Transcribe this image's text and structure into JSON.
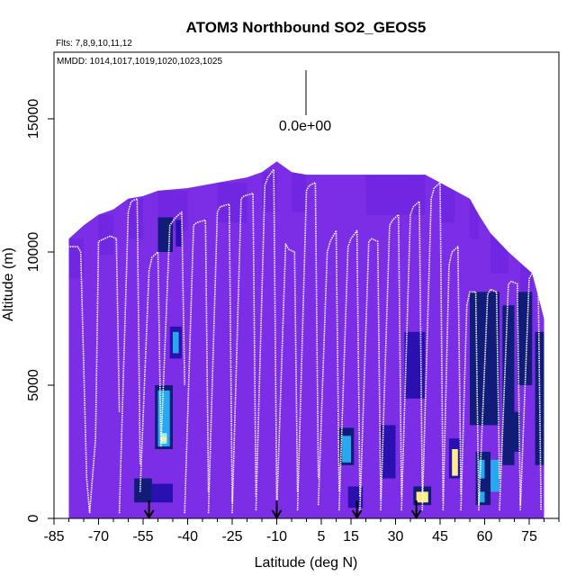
{
  "chart_data": {
    "type": "heatmap",
    "title": "ATOM3 Northbound SO2_GEOS5",
    "flights_label": "Flts: 7,8,9,10,11,12",
    "dates_label": "MMDD: 1014,1017,1019,1020,1023,1025",
    "scale_label": "0.0e+00",
    "xlabel": "Latitude (deg N)",
    "ylabel": "Altitude (m)",
    "xlim": [
      -85,
      85
    ],
    "ylim": [
      0,
      17500
    ],
    "xticks": [
      -85,
      -70,
      -55,
      -40,
      -25,
      -10,
      5,
      15,
      30,
      45,
      60,
      75
    ],
    "yticks": [
      0,
      5000,
      10000,
      15000
    ],
    "colors": {
      "background_field": "#7b2ee6",
      "low": "#6a22e0",
      "mid": "#2a10b0",
      "dark": "#101c78",
      "cyan": "#28a8ee",
      "light_cyan": "#9ef0ff",
      "yellow": "#ffee88",
      "flight_track": "#ffffff",
      "arrow": "#000000"
    },
    "curtain_ceiling": [
      {
        "lat": -80,
        "alt": 10500
      },
      {
        "lat": -75,
        "alt": 11000
      },
      {
        "lat": -70,
        "alt": 11400
      },
      {
        "lat": -65,
        "alt": 11600
      },
      {
        "lat": -60,
        "alt": 12000
      },
      {
        "lat": -55,
        "alt": 12100
      },
      {
        "lat": -50,
        "alt": 12300
      },
      {
        "lat": -40,
        "alt": 12400
      },
      {
        "lat": -30,
        "alt": 12600
      },
      {
        "lat": -20,
        "alt": 12800
      },
      {
        "lat": -15,
        "alt": 13000
      },
      {
        "lat": -10,
        "alt": 13400
      },
      {
        "lat": -5,
        "alt": 13000
      },
      {
        "lat": 0,
        "alt": 12900
      },
      {
        "lat": 20,
        "alt": 12900
      },
      {
        "lat": 40,
        "alt": 12900
      },
      {
        "lat": 45,
        "alt": 12600
      },
      {
        "lat": 50,
        "alt": 12300
      },
      {
        "lat": 55,
        "alt": 12000
      },
      {
        "lat": 58,
        "alt": 11400
      },
      {
        "lat": 62,
        "alt": 10700
      },
      {
        "lat": 68,
        "alt": 10000
      },
      {
        "lat": 72,
        "alt": 9600
      },
      {
        "lat": 76,
        "alt": 9200
      },
      {
        "lat": 80,
        "alt": 7500
      }
    ],
    "enhancements": [
      {
        "lat0": -58,
        "lat1": -52,
        "alt0": 600,
        "alt1": 1500,
        "level": "dark"
      },
      {
        "lat0": -52,
        "lat1": -45,
        "alt0": 600,
        "alt1": 1300,
        "level": "mid"
      },
      {
        "lat0": -51,
        "lat1": -45,
        "alt0": 2600,
        "alt1": 5000,
        "level": "dark"
      },
      {
        "lat0": -50,
        "lat1": -46,
        "alt0": 2700,
        "alt1": 4800,
        "level": "cyan"
      },
      {
        "lat0": -49,
        "lat1": -47,
        "alt0": 2800,
        "alt1": 3200,
        "level": "light_cyan"
      },
      {
        "lat0": -49,
        "lat1": -47,
        "alt0": 2900,
        "alt1": 3050,
        "level": "yellow"
      },
      {
        "lat0": -46,
        "lat1": -42,
        "alt0": 6000,
        "alt1": 7200,
        "level": "mid"
      },
      {
        "lat0": -45,
        "lat1": -43,
        "alt0": 6200,
        "alt1": 7000,
        "level": "cyan"
      },
      {
        "lat0": -50,
        "lat1": -45,
        "alt0": 10000,
        "alt1": 11300,
        "level": "dark"
      },
      {
        "lat0": -44,
        "lat1": -42,
        "alt0": 10200,
        "alt1": 11200,
        "level": "mid"
      },
      {
        "lat0": 11,
        "lat1": 16,
        "alt0": 2000,
        "alt1": 3400,
        "level": "dark"
      },
      {
        "lat0": 12,
        "lat1": 15,
        "alt0": 2100,
        "alt1": 3100,
        "level": "cyan"
      },
      {
        "lat0": 14,
        "lat1": 19,
        "alt0": 400,
        "alt1": 1200,
        "level": "mid"
      },
      {
        "lat0": 36,
        "lat1": 42,
        "alt0": 500,
        "alt1": 1200,
        "level": "dark"
      },
      {
        "lat0": 37,
        "lat1": 41,
        "alt0": 600,
        "alt1": 1000,
        "level": "yellow"
      },
      {
        "lat0": 33,
        "lat1": 40,
        "alt0": 4500,
        "alt1": 7000,
        "level": "mid"
      },
      {
        "lat0": 48,
        "lat1": 52,
        "alt0": 1500,
        "alt1": 3000,
        "level": "mid"
      },
      {
        "lat0": 49,
        "lat1": 51,
        "alt0": 1600,
        "alt1": 2600,
        "level": "yellow"
      },
      {
        "lat0": 57,
        "lat1": 62,
        "alt0": 500,
        "alt1": 2500,
        "level": "dark"
      },
      {
        "lat0": 58,
        "lat1": 60,
        "alt0": 600,
        "alt1": 1000,
        "level": "cyan"
      },
      {
        "lat0": 58,
        "lat1": 60,
        "alt0": 1500,
        "alt1": 2200,
        "level": "cyan"
      },
      {
        "lat0": 55,
        "lat1": 65,
        "alt0": 3500,
        "alt1": 8500,
        "level": "dark"
      },
      {
        "lat0": 62,
        "lat1": 65,
        "alt0": 1000,
        "alt1": 2200,
        "level": "cyan"
      },
      {
        "lat0": 66,
        "lat1": 70,
        "alt0": 2000,
        "alt1": 8000,
        "level": "dark"
      },
      {
        "lat0": 71,
        "lat1": 76,
        "alt0": 5000,
        "alt1": 8500,
        "level": "dark"
      },
      {
        "lat0": 77,
        "lat1": 80,
        "alt0": 2000,
        "alt1": 7000,
        "level": "dark"
      },
      {
        "lat0": 68,
        "lat1": 72,
        "alt0": 2500,
        "alt1": 4000,
        "level": "dark"
      },
      {
        "lat0": 25,
        "lat1": 30,
        "alt0": 1500,
        "alt1": 3500,
        "level": "mid"
      }
    ],
    "flight_tracks": [
      {
        "lats": [
          -82,
          -81,
          -80,
          -77,
          -76,
          -74,
          -73
        ],
        "alts": [
          8500,
          10200,
          10200,
          10200,
          10000,
          1500,
          200
        ]
      },
      {
        "lats": [
          -73,
          -71,
          -70,
          -68,
          -66,
          -64,
          -63
        ],
        "alts": [
          200,
          3000,
          10400,
          10500,
          10600,
          10500,
          4000
        ]
      },
      {
        "lats": [
          -63,
          -60,
          -59,
          -57,
          -56
        ],
        "alts": [
          200,
          11500,
          11900,
          12000,
          2000
        ]
      },
      {
        "lats": [
          -56,
          -53,
          -52,
          -50,
          -49
        ],
        "alts": [
          1000,
          9300,
          9800,
          10000,
          2800
        ]
      },
      {
        "lats": [
          -49,
          -46,
          -44,
          -42,
          -41
        ],
        "alts": [
          2700,
          11000,
          11300,
          11500,
          5000
        ]
      },
      {
        "lats": [
          -41,
          -38,
          -37,
          -34,
          -33
        ],
        "alts": [
          200,
          11000,
          11100,
          11200,
          1000
        ]
      },
      {
        "lats": [
          -33,
          -30,
          -29,
          -26,
          -25
        ],
        "alts": [
          200,
          11500,
          11700,
          11800,
          600
        ]
      },
      {
        "lats": [
          -25,
          -22,
          -21,
          -18,
          -17
        ],
        "alts": [
          200,
          12000,
          12100,
          12200,
          800
        ]
      },
      {
        "lats": [
          -17,
          -14,
          -13,
          -11,
          -10
        ],
        "alts": [
          300,
          12500,
          12800,
          13100,
          600
        ]
      },
      {
        "lats": [
          -10,
          -7,
          -6,
          -4,
          -3
        ],
        "alts": [
          300,
          10300,
          10100,
          10000,
          1000
        ]
      },
      {
        "lats": [
          -3,
          0,
          1,
          3,
          4
        ],
        "alts": [
          300,
          12300,
          12500,
          12600,
          1500
        ]
      },
      {
        "lats": [
          4,
          7,
          8,
          10,
          11
        ],
        "alts": [
          500,
          10000,
          10400,
          10800,
          1000
        ]
      },
      {
        "lats": [
          11,
          14,
          15,
          17,
          18
        ],
        "alts": [
          300,
          10200,
          10500,
          10800,
          800
        ]
      },
      {
        "lats": [
          18,
          21,
          22,
          24,
          25
        ],
        "alts": [
          300,
          10400,
          10500,
          10400,
          700
        ]
      },
      {
        "lats": [
          25,
          28,
          29,
          31,
          32
        ],
        "alts": [
          300,
          11000,
          11200,
          11400,
          800
        ]
      },
      {
        "lats": [
          32,
          35,
          36,
          38,
          39
        ],
        "alts": [
          300,
          11400,
          11700,
          11900,
          1000
        ]
      },
      {
        "lats": [
          39,
          42,
          43,
          45,
          46
        ],
        "alts": [
          300,
          12000,
          12400,
          12600,
          600
        ]
      },
      {
        "lats": [
          46,
          48,
          49,
          51,
          52
        ],
        "alts": [
          300,
          9500,
          10000,
          10200,
          900
        ]
      },
      {
        "lats": [
          52,
          54,
          55,
          57,
          58
        ],
        "alts": [
          300,
          8000,
          8500,
          8500,
          500
        ]
      },
      {
        "lats": [
          58,
          61,
          62,
          64,
          65
        ],
        "alts": [
          300,
          8400,
          8600,
          8500,
          1500
        ]
      },
      {
        "lats": [
          65,
          68,
          69,
          71,
          72
        ],
        "alts": [
          300,
          8800,
          8900,
          8800,
          500
        ]
      },
      {
        "lats": [
          72,
          75,
          76,
          78,
          79
        ],
        "alts": [
          300,
          9000,
          9200,
          9100,
          300
        ]
      }
    ],
    "arrow_lats": [
      -53,
      -10,
      17,
      37
    ]
  }
}
